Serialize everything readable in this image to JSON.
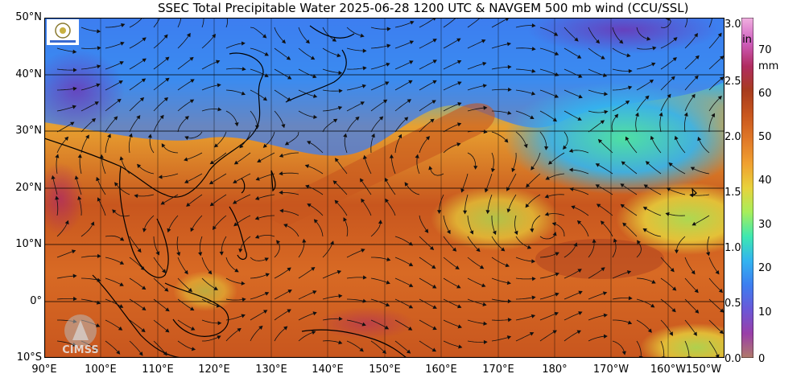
{
  "title": "SSEC Total Precipitable Water  2025-06-28 1200 UTC & NAVGEM 500 mb wind (CCU/SSL)",
  "latitude_labels": [
    "50°N",
    "40°N",
    "30°N",
    "20°N",
    "10°N",
    "0°",
    "10°S"
  ],
  "longitude_labels": [
    "90°E",
    "100°E",
    "110°E",
    "120°E",
    "130°E",
    "140°E",
    "150°E",
    "160°E",
    "170°E",
    "180°",
    "170°W",
    "160°W",
    "150°W"
  ],
  "colorbar": {
    "inch_unit": "in",
    "mm_unit": "mm",
    "inch_ticks": [
      "3.0",
      "2.5",
      "2.0",
      "1.5",
      "1.0",
      "0.5",
      "0.0"
    ],
    "mm_ticks": [
      "70",
      "60",
      "50",
      "40",
      "30",
      "20",
      "10",
      "0"
    ],
    "colors": [
      "#b07a6a",
      "#9a3fa8",
      "#6a58d8",
      "#3d7ef0",
      "#32b4f0",
      "#3ee8b0",
      "#a8ee5a",
      "#e8d23c",
      "#f0a030",
      "#e07828",
      "#c8561e",
      "#a83c1e",
      "#b02c60",
      "#d060c0",
      "#f0b0e0"
    ]
  },
  "logo_text": "CIMSS",
  "colors": {
    "frame": "#000000",
    "grid": "#000000"
  }
}
